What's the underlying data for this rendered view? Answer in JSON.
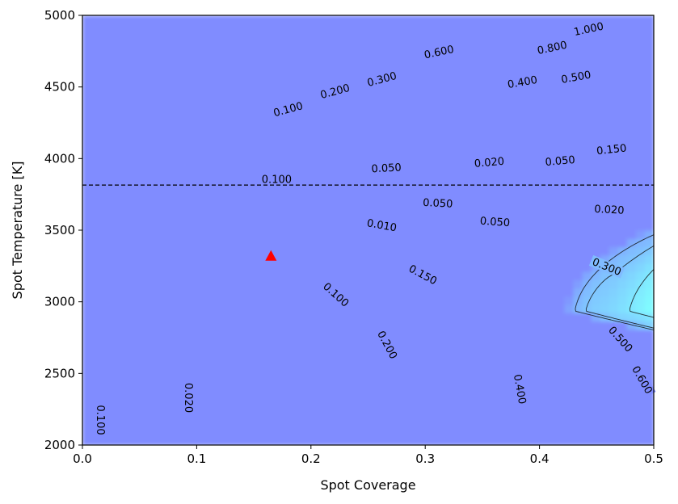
{
  "chart_data": {
    "type": "contour",
    "title": "",
    "xlabel": "Spot Coverage",
    "ylabel": "Spot Temperature [K]",
    "xlim": [
      0.0,
      0.5
    ],
    "ylim": [
      2000,
      5000
    ],
    "x_ticks": [
      0.0,
      0.1,
      0.2,
      0.3,
      0.4,
      0.5
    ],
    "x_tick_labels": [
      "0.0",
      "0.1",
      "0.2",
      "0.3",
      "0.4",
      "0.5"
    ],
    "y_ticks": [
      2000,
      2500,
      3000,
      3500,
      4000,
      4500,
      5000
    ],
    "y_tick_labels": [
      "2000",
      "2500",
      "3000",
      "3500",
      "4000",
      "4500",
      "5000"
    ],
    "colormap": "jet",
    "contour_levels": [
      0.01,
      0.02,
      0.05,
      0.1,
      0.15,
      0.2,
      0.3,
      0.4,
      0.5,
      0.6,
      0.8,
      1.0
    ],
    "reference_temperature": 3815,
    "reference_line_style": "dashed",
    "best_fit_marker": {
      "x": 0.165,
      "y": 3315,
      "shape": "triangle",
      "color": "#ff0000"
    },
    "contour_labels": [
      {
        "text": "1.000",
        "x": 0.443,
        "y": 4905,
        "angle": 12
      },
      {
        "text": "0.800",
        "x": 0.411,
        "y": 4775,
        "angle": 12
      },
      {
        "text": "0.600",
        "x": 0.312,
        "y": 4745,
        "angle": 12
      },
      {
        "text": "0.500",
        "x": 0.432,
        "y": 4570,
        "angle": 10
      },
      {
        "text": "0.400",
        "x": 0.385,
        "y": 4535,
        "angle": 10
      },
      {
        "text": "0.300",
        "x": 0.262,
        "y": 4555,
        "angle": 15
      },
      {
        "text": "0.200",
        "x": 0.221,
        "y": 4470,
        "angle": 15
      },
      {
        "text": "0.100",
        "x": 0.18,
        "y": 4345,
        "angle": 15
      },
      {
        "text": "0.150",
        "x": 0.463,
        "y": 4065,
        "angle": 6
      },
      {
        "text": "0.050",
        "x": 0.418,
        "y": 3985,
        "angle": 5
      },
      {
        "text": "0.020",
        "x": 0.356,
        "y": 3975,
        "angle": 5
      },
      {
        "text": "0.050",
        "x": 0.266,
        "y": 3935,
        "angle": 3
      },
      {
        "text": "0.100",
        "x": 0.17,
        "y": 3855,
        "angle": 0
      },
      {
        "text": "0.050",
        "x": 0.311,
        "y": 3690,
        "angle": -3
      },
      {
        "text": "0.020",
        "x": 0.461,
        "y": 3645,
        "angle": -3
      },
      {
        "text": "0.050",
        "x": 0.361,
        "y": 3560,
        "angle": -4
      },
      {
        "text": "0.010",
        "x": 0.262,
        "y": 3535,
        "angle": -10
      },
      {
        "text": "0.150",
        "x": 0.298,
        "y": 3190,
        "angle": -28
      },
      {
        "text": "0.300",
        "x": 0.459,
        "y": 3245,
        "angle": -22
      },
      {
        "text": "0.100",
        "x": 0.222,
        "y": 3050,
        "angle": -42
      },
      {
        "text": "0.200",
        "x": 0.267,
        "y": 2700,
        "angle": -62
      },
      {
        "text": "0.500",
        "x": 0.471,
        "y": 2740,
        "angle": -48
      },
      {
        "text": "0.400",
        "x": 0.383,
        "y": 2390,
        "angle": -80
      },
      {
        "text": "0.600",
        "x": 0.49,
        "y": 2455,
        "angle": -60
      },
      {
        "text": "0.100",
        "x": 0.016,
        "y": 2175,
        "angle": -90
      },
      {
        "text": "0.020",
        "x": 0.093,
        "y": 2330,
        "angle": -90
      }
    ]
  }
}
